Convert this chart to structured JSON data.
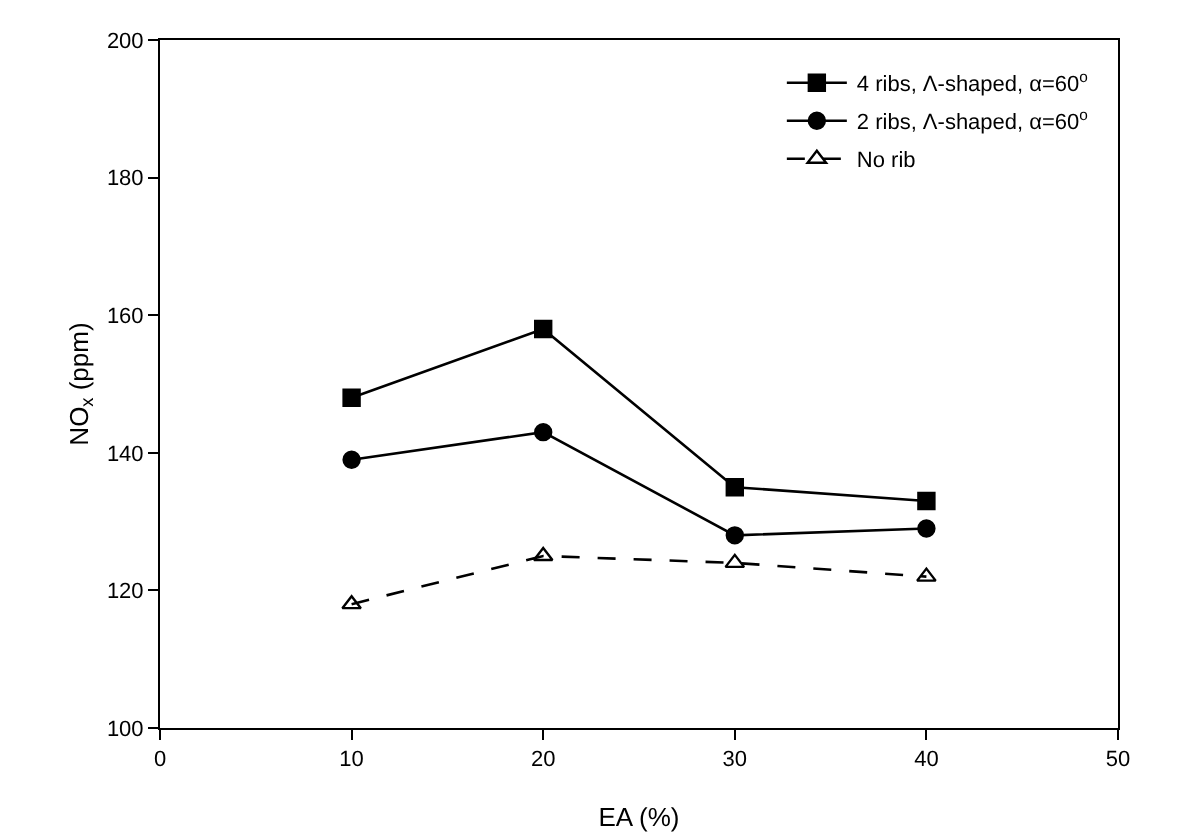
{
  "chart_data": {
    "type": "line",
    "xlabel": "EA (%)",
    "ylabel": "NO$_{x}$ (ppm)",
    "x": [
      10,
      20,
      30,
      40
    ],
    "series": [
      {
        "name": "4 ribs, Λ-shaped, α=60$^{o}$",
        "color": "#000000",
        "values": [
          148,
          158,
          135,
          133
        ],
        "marker": "square",
        "line_style": "solid"
      },
      {
        "name": "2 ribs, Λ-shaped, α=60$^{o}$",
        "color": "#000000",
        "values": [
          139,
          143,
          128,
          129
        ],
        "marker": "circle",
        "line_style": "solid"
      },
      {
        "name": "No rib",
        "color": "#000000",
        "values": [
          118,
          125,
          124,
          122
        ],
        "marker": "triangle",
        "line_style": "dashed"
      }
    ],
    "xlim": [
      0,
      50
    ],
    "xticks": [
      0,
      10,
      20,
      30,
      40,
      50
    ],
    "ylim": [
      100,
      200
    ],
    "yticks": [
      100,
      120,
      140,
      160,
      180,
      200
    ],
    "grid": false,
    "legend": "top right"
  }
}
